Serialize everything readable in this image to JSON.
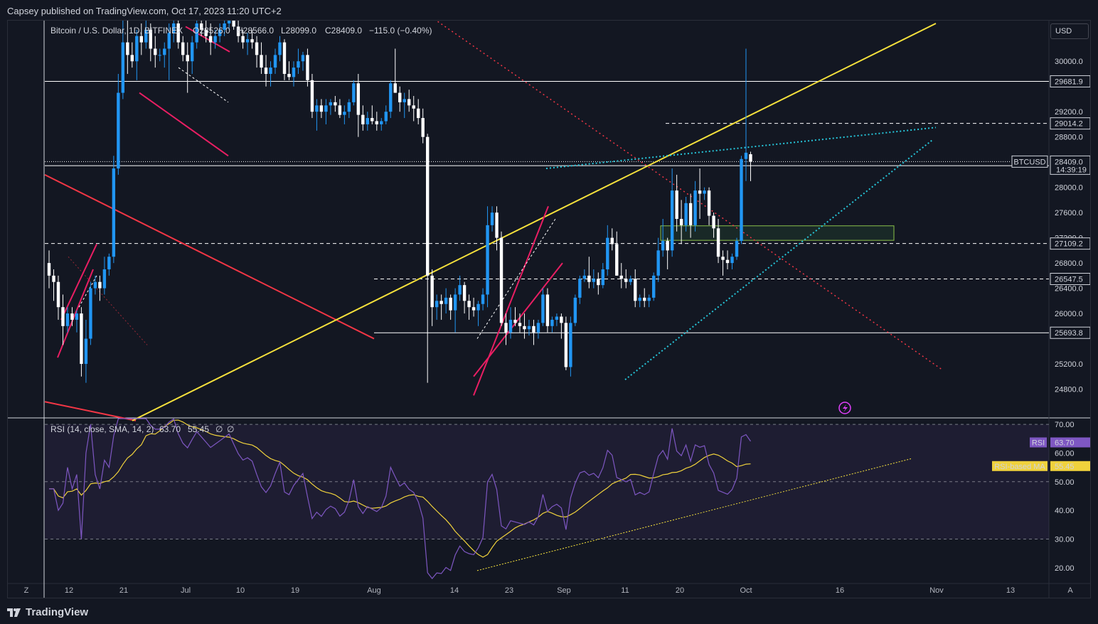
{
  "header": {
    "published": "Capsey published on TradingView.com, Oct 17, 2023 11:20 UTC+2"
  },
  "footer": {
    "brand": "TradingView"
  },
  "currency": "USD",
  "colors": {
    "background": "#131722",
    "bull": "#2196f3",
    "bear": "#ffffff",
    "rsi_line": "#7e57c2",
    "rsi_ma": "#f0d23c",
    "yellow_trend": "#f5e13c",
    "red_trend": "#f23645",
    "pink_channel": "#e91e63",
    "cyan_wedge": "#26c6da",
    "red_dotted": "#f23645"
  },
  "chart_data": [
    {
      "type": "candlestick",
      "symbol": "Bitcoin / U.S. Dollar, 1D, BITFINEX",
      "legend": {
        "name": "Bitcoin / U.S. Dollar, 1D, BITFINEX",
        "open": "O28526.0",
        "high": "H28566.0",
        "low": "L28099.0",
        "close": "C28409.0",
        "change": "−115.0 (−0.40%)"
      },
      "ylim": [
        24400,
        30600
      ],
      "y_ticks": [
        "30000.0",
        "29200.0",
        "28800.0",
        "28000.0",
        "27600.0",
        "27200.0",
        "26800.0",
        "26400.0",
        "26000.0",
        "25200.0",
        "24800.0"
      ],
      "x_ticks": [
        "12",
        "21",
        "Jul",
        "10",
        "19",
        "Aug",
        "14",
        "23",
        "Sep",
        "11",
        "20",
        "Oct",
        "16",
        "Nov",
        "13"
      ],
      "price_levels": [
        {
          "label": "29681.9",
          "value": 29681.9,
          "style": "solid"
        },
        {
          "label": "29014.2",
          "value": 29014.2,
          "style": "dashed"
        },
        {
          "label": "28344.1",
          "value": 28344.1,
          "style": "solid"
        },
        {
          "label": "27109.2",
          "value": 27109.2,
          "style": "dashed"
        },
        {
          "label": "26547.5",
          "value": 26547.5,
          "style": "dashed"
        },
        {
          "label": "25693.8",
          "value": 25693.8,
          "style": "solid"
        }
      ],
      "last_price": {
        "symbol": "BTCUSD",
        "value": "28409.0",
        "countdown": "14:39:19"
      },
      "candles": [
        [
          26800,
          27000,
          26400,
          26600
        ],
        [
          26600,
          26700,
          26200,
          26500
        ],
        [
          26500,
          26600,
          25900,
          26100
        ],
        [
          26100,
          26300,
          25500,
          25800
        ],
        [
          25800,
          26100,
          25700,
          26000
        ],
        [
          26000,
          26100,
          25800,
          25900
        ],
        [
          25900,
          26050,
          25700,
          26000
        ],
        [
          26000,
          26100,
          25000,
          25200
        ],
        [
          25200,
          25900,
          24900,
          25600
        ],
        [
          25600,
          26500,
          25500,
          26400
        ],
        [
          26400,
          26600,
          26300,
          26500
        ],
        [
          26500,
          26600,
          26200,
          26400
        ],
        [
          26400,
          26900,
          26300,
          26700
        ],
        [
          26700,
          26950,
          26600,
          26900
        ],
        [
          26900,
          28500,
          26800,
          28300
        ],
        [
          28300,
          29800,
          28200,
          29500
        ],
        [
          29500,
          30700,
          29400,
          30300
        ],
        [
          30300,
          30700,
          29800,
          30100
        ],
        [
          30100,
          30300,
          29900,
          30000
        ],
        [
          30000,
          30500,
          29700,
          30400
        ],
        [
          30400,
          30600,
          30100,
          30300
        ],
        [
          30300,
          30700,
          30200,
          30500
        ],
        [
          30500,
          30600,
          30000,
          30200
        ],
        [
          30200,
          30400,
          29900,
          30100
        ],
        [
          30100,
          30200,
          30000,
          30100
        ],
        [
          30100,
          30300,
          29900,
          30200
        ],
        [
          30200,
          30600,
          29700,
          30450
        ],
        [
          30450,
          30800,
          30300,
          30600
        ],
        [
          30600,
          30700,
          30200,
          30300
        ],
        [
          30300,
          30400,
          30000,
          30100
        ],
        [
          30100,
          30300,
          29500,
          30000
        ],
        [
          30000,
          30400,
          29800,
          30300
        ],
        [
          30300,
          30700,
          30200,
          30600
        ],
        [
          30600,
          30800,
          30400,
          30500
        ],
        [
          30500,
          30700,
          30300,
          30400
        ],
        [
          30400,
          30600,
          30100,
          30300
        ],
        [
          30300,
          30500,
          30200,
          30400
        ],
        [
          30400,
          30600,
          30300,
          30500
        ],
        [
          30500,
          30700,
          30400,
          30600
        ],
        [
          30600,
          30800,
          30500,
          30700
        ],
        [
          30700,
          30900,
          30500,
          30550
        ],
        [
          30550,
          30700,
          30300,
          30400
        ],
        [
          30400,
          30500,
          30200,
          30300
        ],
        [
          30300,
          30450,
          30100,
          30350
        ],
        [
          30350,
          30500,
          30200,
          30300
        ],
        [
          30300,
          30400,
          29900,
          30100
        ],
        [
          30100,
          30300,
          29800,
          29900
        ],
        [
          29900,
          30100,
          29600,
          29800
        ],
        [
          29800,
          30000,
          29600,
          29900
        ],
        [
          29900,
          30200,
          29800,
          30100
        ],
        [
          30100,
          30400,
          30000,
          30300
        ],
        [
          30300,
          30350,
          29700,
          29800
        ],
        [
          29800,
          30000,
          29700,
          29750
        ],
        [
          29750,
          30000,
          29600,
          29900
        ],
        [
          29900,
          30200,
          29800,
          30000
        ],
        [
          30000,
          30150,
          29850,
          30100
        ],
        [
          30100,
          30200,
          29600,
          29700
        ],
        [
          29700,
          29800,
          29100,
          29200
        ],
        [
          29200,
          29400,
          28900,
          29300
        ],
        [
          29300,
          29400,
          29100,
          29200
        ],
        [
          29200,
          29400,
          29000,
          29300
        ],
        [
          29300,
          29400,
          29150,
          29350
        ],
        [
          29350,
          29450,
          29200,
          29300
        ],
        [
          29300,
          29400,
          29100,
          29150
        ],
        [
          29150,
          29300,
          29000,
          29200
        ],
        [
          29200,
          29400,
          29100,
          29350
        ],
        [
          29350,
          29700,
          29300,
          29650
        ],
        [
          29650,
          29800,
          28800,
          29150
        ],
        [
          29150,
          29300,
          28900,
          29000
        ],
        [
          29000,
          29200,
          28900,
          29100
        ],
        [
          29100,
          29300,
          29000,
          29050
        ],
        [
          29050,
          29200,
          28900,
          29000
        ],
        [
          29000,
          29100,
          28900,
          29050
        ],
        [
          29050,
          29300,
          29000,
          29200
        ],
        [
          29200,
          29700,
          29100,
          29650
        ],
        [
          29650,
          30200,
          29500,
          29500
        ],
        [
          29500,
          29600,
          29200,
          29350
        ],
        [
          29350,
          29500,
          29100,
          29400
        ],
        [
          29400,
          29550,
          29200,
          29300
        ],
        [
          29300,
          29450,
          29050,
          29250
        ],
        [
          29250,
          29400,
          29000,
          29100
        ],
        [
          29100,
          29250,
          28700,
          28800
        ],
        [
          28800,
          28850,
          24900,
          26600
        ],
        [
          26600,
          26700,
          25800,
          26100
        ],
        [
          26100,
          26300,
          25900,
          26200
        ],
        [
          26200,
          26300,
          25900,
          26150
        ],
        [
          26150,
          26400,
          26000,
          26250
        ],
        [
          26250,
          26300,
          25900,
          26050
        ],
        [
          26050,
          26400,
          25700,
          26300
        ],
        [
          26300,
          26600,
          26200,
          26450
        ],
        [
          26450,
          26500,
          26000,
          26200
        ],
        [
          26200,
          26300,
          25900,
          26100
        ],
        [
          26100,
          26250,
          25950,
          26050
        ],
        [
          26050,
          26200,
          25800,
          26150
        ],
        [
          26150,
          26400,
          26050,
          26300
        ],
        [
          26300,
          27700,
          26100,
          27400
        ],
        [
          27400,
          27700,
          27300,
          27600
        ],
        [
          27600,
          27700,
          27000,
          27200
        ],
        [
          27200,
          27300,
          25800,
          25850
        ],
        [
          25850,
          26000,
          25500,
          25700
        ],
        [
          25700,
          26100,
          25600,
          25900
        ],
        [
          25900,
          26100,
          25800,
          25850
        ],
        [
          25850,
          26000,
          25700,
          25800
        ],
        [
          25800,
          26000,
          25600,
          25750
        ],
        [
          25750,
          25900,
          25650,
          25800
        ],
        [
          25800,
          25900,
          25500,
          25700
        ],
        [
          25700,
          25900,
          25600,
          25850
        ],
        [
          25850,
          26400,
          25800,
          26300
        ],
        [
          26300,
          26400,
          25700,
          25800
        ],
        [
          25800,
          25950,
          25700,
          25900
        ],
        [
          25900,
          26000,
          25800,
          25950
        ],
        [
          25950,
          26000,
          25600,
          25850
        ],
        [
          25850,
          25950,
          25100,
          25150
        ],
        [
          25150,
          25950,
          25000,
          25850
        ],
        [
          25850,
          26300,
          25800,
          26250
        ],
        [
          26250,
          26600,
          26150,
          26550
        ],
        [
          26550,
          26700,
          26500,
          26600
        ],
        [
          26600,
          26900,
          26400,
          26500
        ],
        [
          26500,
          26700,
          26400,
          26550
        ],
        [
          26550,
          26650,
          26300,
          26450
        ],
        [
          26450,
          26800,
          26400,
          26700
        ],
        [
          26700,
          27400,
          26600,
          27200
        ],
        [
          27200,
          27350,
          27000,
          27100
        ],
        [
          27100,
          27300,
          26600,
          26600
        ],
        [
          26600,
          26800,
          26400,
          26550
        ],
        [
          26550,
          26700,
          26400,
          26500
        ],
        [
          26500,
          26600,
          26450,
          26550
        ],
        [
          26550,
          26700,
          26100,
          26200
        ],
        [
          26200,
          26300,
          26100,
          26250
        ],
        [
          26250,
          26400,
          26100,
          26200
        ],
        [
          26200,
          26300,
          26100,
          26250
        ],
        [
          26250,
          26650,
          26200,
          26600
        ],
        [
          26600,
          27200,
          26500,
          27000
        ],
        [
          27000,
          27500,
          26900,
          27150
        ],
        [
          27150,
          27200,
          26700,
          27000
        ],
        [
          27000,
          28300,
          26900,
          27950
        ],
        [
          27950,
          28200,
          27300,
          27500
        ],
        [
          27500,
          27800,
          27100,
          27400
        ],
        [
          27400,
          27850,
          27300,
          27750
        ],
        [
          27750,
          27900,
          27200,
          27400
        ],
        [
          27400,
          28100,
          27300,
          27950
        ],
        [
          27950,
          28300,
          27500,
          27900
        ],
        [
          27900,
          28000,
          27800,
          27950
        ],
        [
          27950,
          28000,
          27400,
          27550
        ],
        [
          27550,
          27600,
          27200,
          27350
        ],
        [
          27350,
          27500,
          26800,
          26900
        ],
        [
          26900,
          27000,
          26600,
          26850
        ],
        [
          26850,
          27000,
          26700,
          26800
        ],
        [
          26800,
          26950,
          26700,
          26900
        ],
        [
          26900,
          27200,
          26850,
          27150
        ],
        [
          27150,
          28500,
          27100,
          28450
        ],
        [
          28450,
          30200,
          28100,
          28550
        ],
        [
          28526,
          28566,
          28099,
          28409
        ]
      ]
    },
    {
      "type": "line",
      "name": "RSI (14, close, SMA, 14, 2)",
      "legend": {
        "rsi": "63.70",
        "ma": "55.45",
        "na1": "∅",
        "na2": "∅"
      },
      "ylim": [
        15,
        72
      ],
      "y_ticks": [
        "70.00",
        "60.00",
        "50.00",
        "40.00",
        "30.00",
        "20.00"
      ],
      "bands": {
        "upper": 70,
        "middle": 50,
        "lower": 30
      },
      "labels": {
        "rsi": "RSI",
        "rsi_value": "63.70",
        "ma": "RSI-based MA",
        "ma_value": "55.45"
      }
    }
  ]
}
